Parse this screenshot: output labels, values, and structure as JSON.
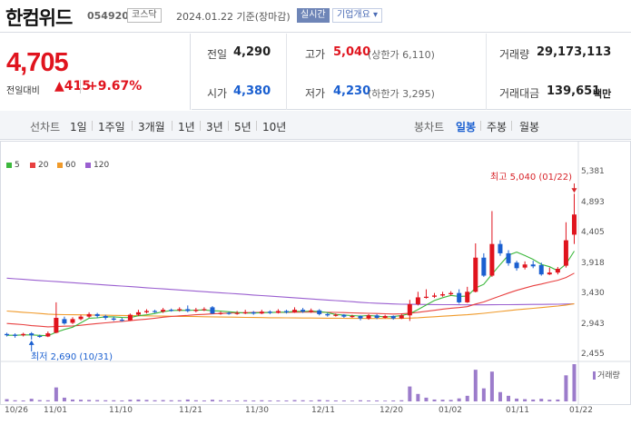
{
  "header": {
    "name": "한컴위드",
    "code": "054920",
    "market": "코스닥",
    "date_text": "2024.01.22  기준(장마감)",
    "realtime_label": "실시간",
    "company_label": "기업개요 ▾"
  },
  "price": {
    "current": "4,705",
    "diff_label": "전일대비",
    "diff_value": "▲415",
    "diff_pct": "+9.67%"
  },
  "stats": {
    "prev_label": "전일",
    "prev": "4,290",
    "high_label": "고가",
    "high": "5,040",
    "upper_limit": "(상한가 6,110)",
    "volume_label": "거래량",
    "volume": "29,173,113",
    "open_label": "시가",
    "open": "4,380",
    "low_label": "저가",
    "low": "4,230",
    "lower_limit": "(하한가 3,295)",
    "amount_label": "거래대금",
    "amount": "139,651",
    "amount_unit": "백만"
  },
  "tabs": {
    "line_chart_label": "선차트",
    "periods": [
      "1일",
      "1주일",
      "3개월",
      "1년",
      "3년",
      "5년",
      "10년"
    ],
    "candle_chart_label": "봉차트",
    "candle_types": [
      "일봉",
      "주봉",
      "월봉"
    ],
    "active_candle": "일봉"
  },
  "chart_data": {
    "type": "candlestick",
    "legend": [
      {
        "name": "5",
        "color": "#3cb83c"
      },
      {
        "name": "20",
        "color": "#e84040"
      },
      {
        "name": "60",
        "color": "#f09a2a"
      },
      {
        "name": "120",
        "color": "#9a5fd0"
      }
    ],
    "y_ticks": [
      "5,381",
      "4,893",
      "4,405",
      "3,918",
      "3,430",
      "2,943",
      "2,455"
    ],
    "ylim": [
      2455,
      5381
    ],
    "x_ticks": [
      "10/26",
      "11/01",
      "11/10",
      "11/21",
      "11/30",
      "12/11",
      "12/20",
      "01/02",
      "01/11",
      "01/22"
    ],
    "high_annotation": "최고 5,040 (01/22)",
    "low_annotation": "최저 2,690 (10/31)",
    "volume_legend": "거래량",
    "candles": [
      {
        "o": 2780,
        "c": 2760,
        "h": 2800,
        "l": 2740
      },
      {
        "o": 2770,
        "c": 2750,
        "h": 2790,
        "l": 2720
      },
      {
        "o": 2760,
        "c": 2780,
        "h": 2800,
        "l": 2740
      },
      {
        "o": 2790,
        "c": 2760,
        "h": 2810,
        "l": 2690
      },
      {
        "o": 2750,
        "c": 2740,
        "h": 2770,
        "l": 2720
      },
      {
        "o": 2740,
        "c": 2790,
        "h": 2820,
        "l": 2730
      },
      {
        "o": 2800,
        "c": 3040,
        "h": 3290,
        "l": 2790
      },
      {
        "o": 3020,
        "c": 2950,
        "h": 3060,
        "l": 2930
      },
      {
        "o": 2960,
        "c": 3020,
        "h": 3050,
        "l": 2940
      },
      {
        "o": 3020,
        "c": 3060,
        "h": 3090,
        "l": 3000
      },
      {
        "o": 3060,
        "c": 3100,
        "h": 3130,
        "l": 3040
      },
      {
        "o": 3100,
        "c": 3070,
        "h": 3120,
        "l": 3040
      },
      {
        "o": 3070,
        "c": 3040,
        "h": 3090,
        "l": 3010
      },
      {
        "o": 3030,
        "c": 3010,
        "h": 3060,
        "l": 2990
      },
      {
        "o": 3010,
        "c": 3000,
        "h": 3040,
        "l": 2980
      },
      {
        "o": 3000,
        "c": 3090,
        "h": 3110,
        "l": 2990
      },
      {
        "o": 3090,
        "c": 3130,
        "h": 3170,
        "l": 3070
      },
      {
        "o": 3130,
        "c": 3150,
        "h": 3180,
        "l": 3110
      },
      {
        "o": 3150,
        "c": 3140,
        "h": 3170,
        "l": 3120
      },
      {
        "o": 3140,
        "c": 3170,
        "h": 3200,
        "l": 3120
      },
      {
        "o": 3170,
        "c": 3160,
        "h": 3190,
        "l": 3140
      },
      {
        "o": 3160,
        "c": 3180,
        "h": 3210,
        "l": 3140
      },
      {
        "o": 3180,
        "c": 3150,
        "h": 3240,
        "l": 3130
      },
      {
        "o": 3150,
        "c": 3170,
        "h": 3200,
        "l": 3130
      },
      {
        "o": 3170,
        "c": 3180,
        "h": 3210,
        "l": 3150
      },
      {
        "o": 3210,
        "c": 3110,
        "h": 3230,
        "l": 3100
      },
      {
        "o": 3110,
        "c": 3120,
        "h": 3140,
        "l": 3090
      },
      {
        "o": 3120,
        "c": 3110,
        "h": 3140,
        "l": 3090
      },
      {
        "o": 3110,
        "c": 3120,
        "h": 3150,
        "l": 3090
      },
      {
        "o": 3120,
        "c": 3130,
        "h": 3170,
        "l": 3100
      },
      {
        "o": 3130,
        "c": 3110,
        "h": 3150,
        "l": 3090
      },
      {
        "o": 3110,
        "c": 3140,
        "h": 3170,
        "l": 3100
      },
      {
        "o": 3140,
        "c": 3120,
        "h": 3160,
        "l": 3100
      },
      {
        "o": 3120,
        "c": 3150,
        "h": 3180,
        "l": 3110
      },
      {
        "o": 3150,
        "c": 3130,
        "h": 3170,
        "l": 3110
      },
      {
        "o": 3130,
        "c": 3170,
        "h": 3210,
        "l": 3120
      },
      {
        "o": 3170,
        "c": 3140,
        "h": 3200,
        "l": 3120
      },
      {
        "o": 3140,
        "c": 3160,
        "h": 3190,
        "l": 3120
      },
      {
        "o": 3160,
        "c": 3100,
        "h": 3180,
        "l": 3080
      },
      {
        "o": 3100,
        "c": 3080,
        "h": 3120,
        "l": 3060
      },
      {
        "o": 3080,
        "c": 3090,
        "h": 3110,
        "l": 3060
      },
      {
        "o": 3090,
        "c": 3060,
        "h": 3100,
        "l": 3040
      },
      {
        "o": 3060,
        "c": 3070,
        "h": 3090,
        "l": 3040
      },
      {
        "o": 3070,
        "c": 3030,
        "h": 3080,
        "l": 3000
      },
      {
        "o": 3030,
        "c": 3080,
        "h": 3100,
        "l": 3010
      },
      {
        "o": 3080,
        "c": 3040,
        "h": 3100,
        "l": 3020
      },
      {
        "o": 3040,
        "c": 3070,
        "h": 3090,
        "l": 3030
      },
      {
        "o": 3070,
        "c": 3030,
        "h": 3080,
        "l": 3010
      },
      {
        "o": 3030,
        "c": 3080,
        "h": 3110,
        "l": 3020
      },
      {
        "o": 3080,
        "c": 3260,
        "h": 3330,
        "l": 2990
      },
      {
        "o": 3260,
        "c": 3370,
        "h": 3460,
        "l": 3240
      },
      {
        "o": 3370,
        "c": 3380,
        "h": 3500,
        "l": 3350
      },
      {
        "o": 3380,
        "c": 3400,
        "h": 3440,
        "l": 3360
      },
      {
        "o": 3400,
        "c": 3420,
        "h": 3460,
        "l": 3380
      },
      {
        "o": 3420,
        "c": 3440,
        "h": 3470,
        "l": 3400
      },
      {
        "o": 3440,
        "c": 3290,
        "h": 3500,
        "l": 3270
      },
      {
        "o": 3290,
        "c": 3460,
        "h": 3540,
        "l": 3280
      },
      {
        "o": 3460,
        "c": 4010,
        "h": 4240,
        "l": 3450
      },
      {
        "o": 4010,
        "c": 3720,
        "h": 4080,
        "l": 3700
      },
      {
        "o": 3720,
        "c": 4230,
        "h": 4760,
        "l": 3700
      },
      {
        "o": 4230,
        "c": 4080,
        "h": 4290,
        "l": 4040
      },
      {
        "o": 4080,
        "c": 3920,
        "h": 4130,
        "l": 3880
      },
      {
        "o": 3930,
        "c": 3840,
        "h": 3960,
        "l": 3800
      },
      {
        "o": 3850,
        "c": 3900,
        "h": 3950,
        "l": 3820
      },
      {
        "o": 3900,
        "c": 3870,
        "h": 3960,
        "l": 3840
      },
      {
        "o": 3890,
        "c": 3740,
        "h": 3930,
        "l": 3720
      },
      {
        "o": 3740,
        "c": 3770,
        "h": 3850,
        "l": 3730
      },
      {
        "o": 3770,
        "c": 3830,
        "h": 3860,
        "l": 3740
      },
      {
        "o": 3880,
        "c": 4290,
        "h": 4580,
        "l": 3850
      },
      {
        "o": 4380,
        "c": 4705,
        "h": 5040,
        "l": 4230
      }
    ],
    "ma5": [
      2760,
      2760,
      2765,
      2765,
      2758,
      2752,
      2808,
      2853,
      2890,
      2960,
      3034,
      3040,
      3058,
      3056,
      3046,
      3044,
      3074,
      3088,
      3110,
      3140,
      3158,
      3162,
      3160,
      3164,
      3168,
      3155,
      3148,
      3138,
      3127,
      3118,
      3118,
      3123,
      3125,
      3131,
      3131,
      3145,
      3143,
      3149,
      3141,
      3123,
      3095,
      3085,
      3077,
      3070,
      3078,
      3068,
      3055,
      3060,
      3078,
      3106,
      3174,
      3247,
      3320,
      3365,
      3402,
      3386,
      3390,
      3522,
      3580,
      3742,
      3900,
      4050,
      4100,
      4044,
      3982,
      3902,
      3864,
      3800,
      3905,
      4115
    ],
    "ma20": [
      2950,
      2940,
      2930,
      2915,
      2905,
      2895,
      2900,
      2905,
      2910,
      2920,
      2935,
      2948,
      2960,
      2972,
      2982,
      2995,
      3008,
      3020,
      3035,
      3050,
      3062,
      3072,
      3080,
      3090,
      3096,
      3104,
      3110,
      3116,
      3120,
      3124,
      3126,
      3128,
      3128,
      3129,
      3130,
      3131,
      3132,
      3132,
      3132,
      3130,
      3128,
      3125,
      3120,
      3117,
      3113,
      3110,
      3106,
      3102,
      3105,
      3115,
      3130,
      3146,
      3162,
      3180,
      3195,
      3205,
      3220,
      3262,
      3296,
      3346,
      3393,
      3440,
      3484,
      3520,
      3556,
      3585,
      3616,
      3646,
      3690,
      3760
    ],
    "ma60": [
      3150,
      3140,
      3130,
      3120,
      3110,
      3100,
      3095,
      3092,
      3090,
      3088,
      3086,
      3084,
      3082,
      3080,
      3078,
      3076,
      3074,
      3072,
      3070,
      3068,
      3066,
      3064,
      3062,
      3060,
      3058,
      3056,
      3054,
      3052,
      3050,
      3048,
      3046,
      3044,
      3042,
      3041,
      3040,
      3039,
      3038,
      3037,
      3036,
      3035,
      3034,
      3033,
      3032,
      3031,
      3030,
      3030,
      3030,
      3030,
      3032,
      3036,
      3042,
      3050,
      3058,
      3066,
      3074,
      3082,
      3090,
      3102,
      3114,
      3128,
      3142,
      3156,
      3170,
      3182,
      3194,
      3206,
      3218,
      3230,
      3246,
      3268
    ],
    "ma120": [
      3680,
      3670,
      3660,
      3651,
      3642,
      3633,
      3624,
      3615,
      3606,
      3597,
      3588,
      3579,
      3570,
      3561,
      3552,
      3543,
      3534,
      3525,
      3516,
      3507,
      3498,
      3489,
      3480,
      3471,
      3462,
      3453,
      3444,
      3435,
      3426,
      3417,
      3408,
      3399,
      3390,
      3381,
      3372,
      3363,
      3354,
      3345,
      3336,
      3327,
      3318,
      3309,
      3300,
      3291,
      3282,
      3276,
      3270,
      3264,
      3260,
      3258,
      3256,
      3255,
      3254,
      3253,
      3252,
      3251,
      3250,
      3250,
      3250,
      3251,
      3252,
      3253,
      3254,
      3255,
      3256,
      3257,
      3258,
      3259,
      3262,
      3266
    ],
    "volume": [
      1.2,
      0.6,
      0.5,
      1.4,
      0.7,
      0.6,
      7.5,
      2.0,
      1.0,
      0.9,
      0.8,
      0.7,
      0.6,
      0.6,
      0.5,
      0.9,
      1.0,
      0.8,
      0.6,
      0.7,
      0.6,
      0.6,
      1.0,
      0.6,
      0.5,
      0.9,
      0.6,
      0.5,
      0.5,
      0.6,
      0.5,
      0.6,
      0.5,
      0.5,
      0.5,
      0.7,
      0.6,
      0.5,
      0.8,
      0.6,
      0.5,
      0.5,
      0.4,
      0.6,
      0.5,
      0.5,
      0.4,
      0.5,
      0.6,
      8.0,
      4.0,
      2.0,
      1.0,
      0.9,
      0.8,
      1.6,
      3.0,
      17.0,
      7.0,
      16.0,
      5.0,
      3.0,
      1.5,
      1.2,
      1.0,
      1.4,
      0.9,
      1.0,
      14.0,
      20.0
    ]
  }
}
